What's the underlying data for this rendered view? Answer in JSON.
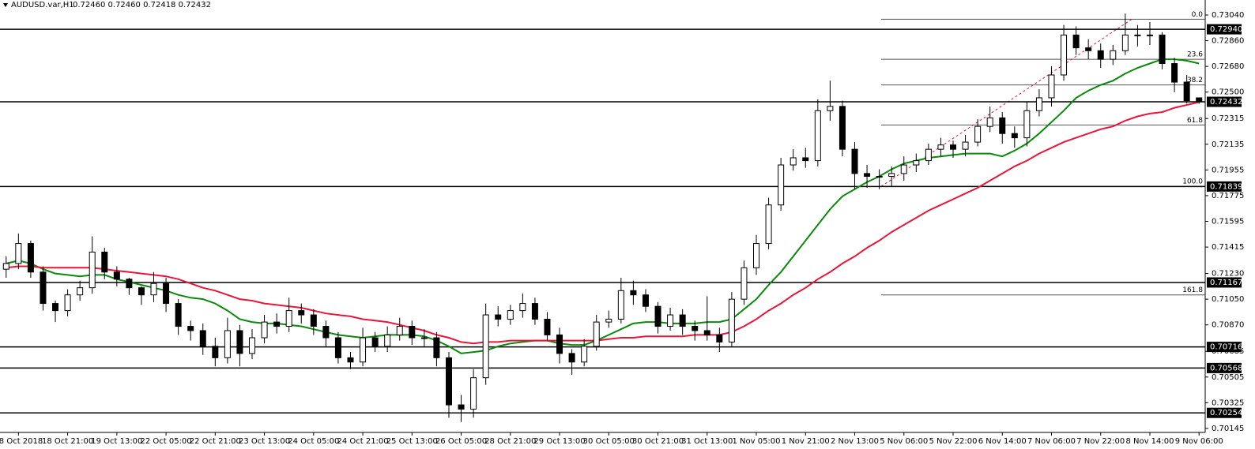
{
  "chart_data": {
    "type": "candlestick",
    "title": "AUDUSD.var,H1",
    "info": "0.72460 0.72460 0.72418 0.72432",
    "categories": [
      null,
      "18 Oct 2018",
      null,
      null,
      null,
      "18 Oct 21:00",
      null,
      null,
      null,
      "19 Oct 13:00",
      null,
      null,
      null,
      "22 Oct 05:00",
      null,
      null,
      null,
      "22 Oct 21:00",
      null,
      null,
      null,
      "23 Oct 13:00",
      null,
      null,
      null,
      "24 Oct 05:00",
      null,
      null,
      null,
      "24 Oct 21:00",
      null,
      null,
      null,
      "25 Oct 13:00",
      null,
      null,
      null,
      "26 Oct 05:00",
      null,
      null,
      null,
      "28 Oct 21:00",
      null,
      null,
      null,
      "29 Oct 13:00",
      null,
      null,
      null,
      "30 Oct 05:00",
      null,
      null,
      null,
      "30 Oct 21:00",
      null,
      null,
      null,
      "31 Oct 13:00",
      null,
      null,
      null,
      "1 Nov 05:00",
      null,
      null,
      null,
      "1 Nov 21:00",
      null,
      null,
      null,
      "2 Nov 13:00",
      null,
      null,
      null,
      "5 Nov 06:00",
      null,
      null,
      null,
      "5 Nov 22:00",
      null,
      null,
      null,
      "6 Nov 14:00",
      null,
      null,
      null,
      "7 Nov 06:00",
      null,
      null,
      null,
      "7 Nov 22:00",
      null,
      null,
      null,
      "8 Nov 14:00",
      null,
      null,
      null,
      "9 Nov 06:00"
    ],
    "open": [
      0.7126,
      0.713,
      0.7144,
      0.7124,
      0.7102,
      0.7097,
      0.7108,
      0.7113,
      0.7138,
      0.7124,
      0.7119,
      0.7113,
      0.7108,
      0.7116,
      0.7102,
      0.7086,
      0.7083,
      0.7072,
      0.7064,
      0.7083,
      0.7067,
      0.7078,
      0.7089,
      0.7086,
      0.7097,
      0.7094,
      0.7086,
      0.7078,
      0.7064,
      0.7061,
      0.7078,
      0.7072,
      0.708,
      0.7086,
      0.7078,
      0.7078,
      0.7064,
      0.7031,
      0.7028,
      0.705,
      0.7094,
      0.7091,
      0.7097,
      0.7102,
      0.7091,
      0.708,
      0.7067,
      0.7061,
      0.7072,
      0.7089,
      0.7091,
      0.7111,
      0.7108,
      0.71,
      0.7086,
      0.7094,
      0.7086,
      0.7083,
      0.708,
      0.7075,
      0.7105,
      0.7127,
      0.7144,
      0.7171,
      0.7199,
      0.7204,
      0.7202,
      0.7237,
      0.724,
      0.721,
      0.7193,
      0.7191,
      0.7191,
      0.7193,
      0.7199,
      0.7202,
      0.721,
      0.7213,
      0.721,
      0.7215,
      0.7226,
      0.7232,
      0.7221,
      0.7218,
      0.7237,
      0.7246,
      0.7262,
      0.729,
      0.7281,
      0.7279,
      0.7273,
      0.7279,
      0.729,
      0.729,
      0.729,
      0.727,
      0.7257,
      0.7246
    ],
    "high": [
      0.7135,
      0.7151,
      0.7146,
      0.7128,
      0.7104,
      0.7112,
      0.7118,
      0.7149,
      0.7141,
      0.7128,
      0.712,
      0.7114,
      0.7124,
      0.712,
      0.7105,
      0.709,
      0.7088,
      0.7078,
      0.7092,
      0.7087,
      0.7084,
      0.7094,
      0.7095,
      0.7106,
      0.7102,
      0.7098,
      0.709,
      0.7082,
      0.7068,
      0.7085,
      0.7082,
      0.7086,
      0.7092,
      0.709,
      0.7084,
      0.7082,
      0.7068,
      0.7038,
      0.7056,
      0.7102,
      0.71,
      0.7101,
      0.7109,
      0.7106,
      0.7096,
      0.7085,
      0.707,
      0.7077,
      0.7094,
      0.7097,
      0.712,
      0.7118,
      0.7112,
      0.7103,
      0.7099,
      0.7098,
      0.709,
      0.7107,
      0.7085,
      0.711,
      0.7132,
      0.715,
      0.7176,
      0.7204,
      0.721,
      0.7211,
      0.7245,
      0.7258,
      0.7244,
      0.7215,
      0.7199,
      0.7196,
      0.7198,
      0.7205,
      0.7207,
      0.7214,
      0.7218,
      0.7216,
      0.722,
      0.7231,
      0.724,
      0.7236,
      0.7226,
      0.7243,
      0.7252,
      0.7268,
      0.7297,
      0.7296,
      0.7287,
      0.7284,
      0.7283,
      0.7305,
      0.7297,
      0.7299,
      0.7292,
      0.7274,
      0.7262,
      0.7246
    ],
    "low": [
      0.712,
      0.7126,
      0.712,
      0.7097,
      0.7089,
      0.7093,
      0.7104,
      0.7109,
      0.7119,
      0.7114,
      0.7108,
      0.7101,
      0.7103,
      0.7096,
      0.708,
      0.7076,
      0.7066,
      0.7058,
      0.706,
      0.7058,
      0.7063,
      0.7074,
      0.7081,
      0.7082,
      0.7088,
      0.708,
      0.7072,
      0.706,
      0.7056,
      0.7058,
      0.7068,
      0.7068,
      0.7076,
      0.7073,
      0.7072,
      0.7058,
      0.7022,
      0.7019,
      0.7022,
      0.7045,
      0.7086,
      0.7087,
      0.7092,
      0.7087,
      0.7076,
      0.706,
      0.7052,
      0.7058,
      0.7069,
      0.7085,
      0.7088,
      0.7101,
      0.7096,
      0.7081,
      0.7083,
      0.708,
      0.7076,
      0.7076,
      0.7068,
      0.7072,
      0.7101,
      0.7122,
      0.714,
      0.7167,
      0.7195,
      0.7197,
      0.7198,
      0.723,
      0.7205,
      0.7182,
      0.7183,
      0.7182,
      0.7184,
      0.7188,
      0.7194,
      0.7199,
      0.7205,
      0.7204,
      0.7205,
      0.7212,
      0.7222,
      0.7214,
      0.7211,
      0.7212,
      0.7233,
      0.724,
      0.7258,
      0.7276,
      0.7273,
      0.7267,
      0.7269,
      0.7276,
      0.7282,
      0.7283,
      0.7266,
      0.725,
      0.7242,
      0.72418
    ],
    "close": [
      0.713,
      0.7144,
      0.7124,
      0.7102,
      0.7097,
      0.7108,
      0.7113,
      0.7138,
      0.7124,
      0.7119,
      0.7113,
      0.7108,
      0.7116,
      0.7102,
      0.7086,
      0.7083,
      0.7072,
      0.7064,
      0.7083,
      0.7067,
      0.7078,
      0.7089,
      0.7086,
      0.7097,
      0.7094,
      0.7086,
      0.7078,
      0.7064,
      0.7061,
      0.7078,
      0.7072,
      0.708,
      0.7086,
      0.7078,
      0.7078,
      0.7064,
      0.7031,
      0.7028,
      0.705,
      0.7094,
      0.7091,
      0.7097,
      0.7102,
      0.7091,
      0.708,
      0.7067,
      0.7061,
      0.7072,
      0.7089,
      0.7091,
      0.7111,
      0.7108,
      0.71,
      0.7086,
      0.7094,
      0.7086,
      0.7083,
      0.708,
      0.7075,
      0.7105,
      0.7127,
      0.7144,
      0.7171,
      0.7199,
      0.7204,
      0.7202,
      0.7237,
      0.724,
      0.721,
      0.7193,
      0.7191,
      0.7191,
      0.7193,
      0.7199,
      0.7202,
      0.721,
      0.7213,
      0.721,
      0.7215,
      0.7226,
      0.7232,
      0.7221,
      0.7218,
      0.7237,
      0.7246,
      0.7262,
      0.729,
      0.7281,
      0.7279,
      0.7273,
      0.7279,
      0.729,
      0.729,
      0.729,
      0.727,
      0.7257,
      0.7244,
      0.72432
    ],
    "series": [
      {
        "color": "#0a8a0a",
        "values": [
          0.713,
          0.7132,
          0.713,
          0.7126,
          0.7123,
          0.7122,
          0.7121,
          0.7122,
          0.7122,
          0.7119,
          0.7117,
          0.7115,
          0.7113,
          0.7111,
          0.7108,
          0.7106,
          0.7105,
          0.7102,
          0.7097,
          0.7091,
          0.7089,
          0.7088,
          0.7088,
          0.7087,
          0.7086,
          0.7084,
          0.7082,
          0.708,
          0.7079,
          0.7078,
          0.7079,
          0.708,
          0.708,
          0.708,
          0.7079,
          0.7076,
          0.7072,
          0.7067,
          0.7068,
          0.7069,
          0.7072,
          0.7074,
          0.7075,
          0.7076,
          0.7076,
          0.7074,
          0.7073,
          0.7073,
          0.7076,
          0.708,
          0.7084,
          0.7088,
          0.7089,
          0.7089,
          0.7088,
          0.7088,
          0.7088,
          0.7089,
          0.7089,
          0.7091,
          0.7098,
          0.7105,
          0.7115,
          0.7124,
          0.7135,
          0.7146,
          0.7157,
          0.7168,
          0.7177,
          0.7182,
          0.7187,
          0.7191,
          0.7196,
          0.72,
          0.7202,
          0.7204,
          0.7205,
          0.7206,
          0.7207,
          0.7207,
          0.7207,
          0.7205,
          0.7209,
          0.7214,
          0.7221,
          0.7229,
          0.7237,
          0.7246,
          0.7251,
          0.7255,
          0.7258,
          0.7263,
          0.7267,
          0.727,
          0.7273,
          0.7273,
          0.7272,
          0.727
        ]
      },
      {
        "color": "#e8173a",
        "values": [
          0.7127,
          0.7128,
          0.7128,
          0.7127,
          0.7127,
          0.7127,
          0.7127,
          0.7127,
          0.7126,
          0.7125,
          0.7124,
          0.7123,
          0.7122,
          0.7121,
          0.7119,
          0.7116,
          0.7113,
          0.7111,
          0.7108,
          0.7105,
          0.7104,
          0.7102,
          0.7101,
          0.71,
          0.7099,
          0.7097,
          0.7095,
          0.7094,
          0.7093,
          0.7091,
          0.709,
          0.7089,
          0.7087,
          0.7085,
          0.7083,
          0.708,
          0.7078,
          0.7075,
          0.7074,
          0.7075,
          0.7075,
          0.7076,
          0.7076,
          0.7076,
          0.7076,
          0.7076,
          0.7076,
          0.7076,
          0.7076,
          0.7077,
          0.7078,
          0.7078,
          0.7079,
          0.7079,
          0.7079,
          0.7079,
          0.708,
          0.708,
          0.708,
          0.7082,
          0.7086,
          0.7091,
          0.7097,
          0.7102,
          0.7108,
          0.7113,
          0.7119,
          0.7124,
          0.713,
          0.7135,
          0.7141,
          0.7146,
          0.7152,
          0.7157,
          0.7162,
          0.7167,
          0.7171,
          0.7175,
          0.7179,
          0.7183,
          0.7188,
          0.7193,
          0.7198,
          0.7202,
          0.7207,
          0.7211,
          0.7215,
          0.7218,
          0.7221,
          0.7224,
          0.7226,
          0.723,
          0.7233,
          0.7235,
          0.7236,
          0.7239,
          0.7241,
          0.7243
        ]
      }
    ],
    "ylim": [
      0.70117,
      0.73145
    ],
    "yticks": [
      {
        "value": 0.7304,
        "label": "0.73040"
      },
      {
        "value": 0.7286,
        "label": "0.72860"
      },
      {
        "value": 0.7268,
        "label": "0.72680"
      },
      {
        "value": 0.725,
        "label": "0.72500"
      },
      {
        "value": 0.72315,
        "label": "0.72315"
      },
      {
        "value": 0.72135,
        "label": "0.72135"
      },
      {
        "value": 0.71955,
        "label": "0.71955"
      },
      {
        "value": 0.71775,
        "label": "0.71775"
      },
      {
        "value": 0.71595,
        "label": "0.71595"
      },
      {
        "value": 0.71415,
        "label": "0.71415"
      },
      {
        "value": 0.7123,
        "label": "0.71230"
      },
      {
        "value": 0.7105,
        "label": "0.71050"
      },
      {
        "value": 0.7087,
        "label": "0.70870"
      },
      {
        "value": 0.70685,
        "label": "0.70685"
      },
      {
        "value": 0.70505,
        "label": "0.70505"
      },
      {
        "value": 0.70325,
        "label": "0.70325"
      },
      {
        "value": 0.70145,
        "label": "0.70145"
      }
    ],
    "levels": [
      {
        "value": 0.7294,
        "label": "0.72940"
      },
      {
        "value": 0.72432,
        "label": "0.72432"
      },
      {
        "value": 0.71839,
        "label": "0.71839"
      },
      {
        "value": 0.71167,
        "label": "0.71167"
      },
      {
        "value": 0.70716,
        "label": "0.70716"
      },
      {
        "value": 0.70568,
        "label": "0.70568"
      },
      {
        "value": 0.70254,
        "label": "0.70254"
      }
    ],
    "fib_levels": [
      {
        "label": "0.0",
        "price": 0.7301
      },
      {
        "label": "23.6",
        "price": 0.7273
      },
      {
        "label": "38.2",
        "price": 0.7255
      },
      {
        "label": "61.8",
        "price": 0.7227
      },
      {
        "label": "100.0",
        "price": 0.7184
      },
      {
        "label": "161.8",
        "price": 0.7108
      }
    ]
  }
}
